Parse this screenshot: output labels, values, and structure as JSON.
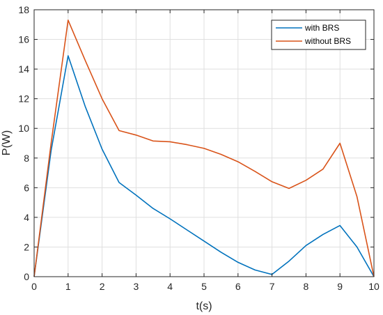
{
  "chart_data": {
    "type": "line",
    "xlabel": "t(s)",
    "ylabel": "P(W)",
    "xlim": [
      0,
      10
    ],
    "ylim": [
      0,
      18
    ],
    "xticks": [
      "0",
      "1",
      "2",
      "3",
      "4",
      "5",
      "6",
      "7",
      "8",
      "9",
      "10"
    ],
    "yticks": [
      "0",
      "2",
      "4",
      "6",
      "8",
      "10",
      "12",
      "14",
      "16",
      "18"
    ],
    "grid": true,
    "legend_position": "top-right",
    "x": [
      0,
      0.5,
      1,
      1.5,
      2,
      2.5,
      3,
      3.5,
      4,
      4.5,
      5,
      5.5,
      6,
      6.5,
      7,
      7.5,
      8,
      8.5,
      9,
      9.5,
      10
    ],
    "series": [
      {
        "name": "with BRS",
        "color": "#0072BD",
        "values": [
          0,
          8.5,
          14.9,
          11.5,
          8.6,
          6.35,
          5.5,
          4.6,
          3.9,
          3.15,
          2.4,
          1.65,
          0.97,
          0.45,
          0.15,
          1.05,
          2.1,
          2.85,
          3.45,
          2.0,
          0
        ]
      },
      {
        "name": "without BRS",
        "color": "#D95319",
        "values": [
          0,
          9.0,
          17.3,
          14.6,
          12.0,
          9.85,
          9.55,
          9.15,
          9.1,
          8.9,
          8.65,
          8.25,
          7.75,
          7.1,
          6.4,
          5.95,
          6.5,
          7.25,
          9.0,
          5.4,
          0
        ]
      }
    ]
  }
}
